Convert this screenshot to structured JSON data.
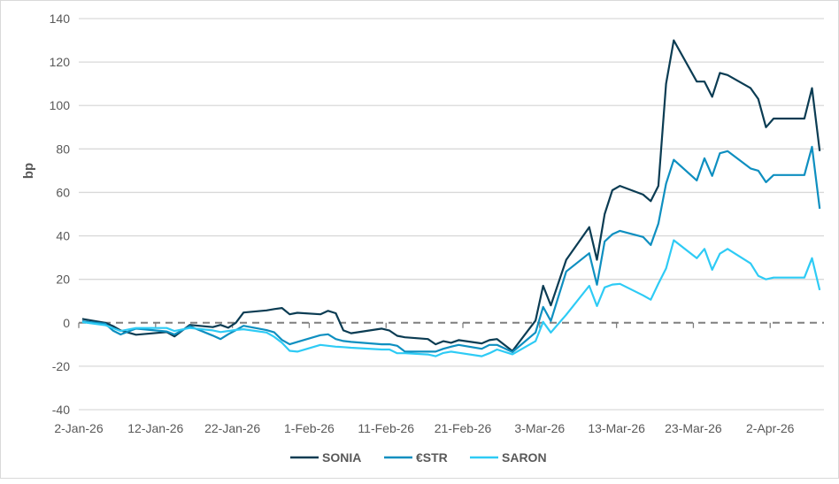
{
  "chart_data": {
    "type": "line",
    "title": "",
    "xlabel": "",
    "ylabel": "bp",
    "ylim": [
      -40,
      140
    ],
    "yticks": [
      -40,
      -20,
      0,
      20,
      40,
      60,
      80,
      100,
      120,
      140
    ],
    "ytick_labels": [
      "-40",
      "-20",
      "0",
      "20",
      "40",
      "60",
      "80",
      "100",
      "120",
      "140"
    ],
    "xlim": [
      "2026-01-02",
      "2026-04-09"
    ],
    "xticks": [
      "2026-01-02",
      "2026-01-12",
      "2026-01-22",
      "2026-02-01",
      "2026-02-11",
      "2026-02-21",
      "2026-03-03",
      "2026-03-13",
      "2026-03-23",
      "2026-04-02"
    ],
    "xtick_labels": [
      "2-Jan-26",
      "12-Jan-26",
      "22-Jan-26",
      "1-Feb-26",
      "11-Feb-26",
      "21-Feb-26",
      "3-Mar-26",
      "13-Mar-26",
      "23-Mar-26",
      "2-Apr-26"
    ],
    "grid": "horizontal",
    "zero_line": "dashed",
    "legend_position": "bottom",
    "x": [
      "2026-01-02",
      "2026-01-05",
      "2026-01-06",
      "2026-01-07",
      "2026-01-09",
      "2026-01-13",
      "2026-01-14",
      "2026-01-16",
      "2026-01-19",
      "2026-01-20",
      "2026-01-21",
      "2026-01-22",
      "2026-01-23",
      "2026-01-26",
      "2026-01-27",
      "2026-01-28",
      "2026-01-29",
      "2026-01-30",
      "2026-02-02",
      "2026-02-03",
      "2026-02-04",
      "2026-02-05",
      "2026-02-06",
      "2026-02-10",
      "2026-02-11",
      "2026-02-12",
      "2026-02-13",
      "2026-02-16",
      "2026-02-17",
      "2026-02-18",
      "2026-02-19",
      "2026-02-20",
      "2026-02-23",
      "2026-02-24",
      "2026-02-25",
      "2026-02-27",
      "2026-03-02",
      "2026-03-03",
      "2026-03-04",
      "2026-03-06",
      "2026-03-09",
      "2026-03-10",
      "2026-03-11",
      "2026-03-12",
      "2026-03-13",
      "2026-03-16",
      "2026-03-17",
      "2026-03-18",
      "2026-03-19",
      "2026-03-20",
      "2026-03-23",
      "2026-03-24",
      "2026-03-25",
      "2026-03-26",
      "2026-03-27",
      "2026-03-30",
      "2026-03-31",
      "2026-04-01",
      "2026-04-02",
      "2026-04-06",
      "2026-04-07",
      "2026-04-08"
    ],
    "series": [
      {
        "name": "SONIA",
        "color": "#0b3c53",
        "values": [
          1.8,
          0,
          -1.5,
          -3.5,
          -5.5,
          -4.3,
          -6.3,
          -1,
          -2,
          -1,
          -2.3,
          0,
          4.7,
          5.7,
          6.3,
          6.8,
          3.9,
          4.6,
          3.9,
          5.5,
          4.4,
          -3.5,
          -4.8,
          -2.7,
          -3.6,
          -6,
          -6.7,
          -7.5,
          -9.9,
          -8.5,
          -9.2,
          -8,
          -9.5,
          -8,
          -7.5,
          -13,
          1,
          17,
          8,
          29,
          44,
          29,
          50,
          61,
          63,
          59,
          56,
          63,
          110,
          130,
          111,
          111,
          104,
          115,
          114,
          108,
          103,
          90,
          94,
          94,
          108,
          79
        ]
      },
      {
        "name": "€STR",
        "color": "#0e8fc0",
        "values": [
          0.7,
          -0.4,
          -3.6,
          -5.4,
          -2.7,
          -4,
          -5.4,
          -1.6,
          -5.9,
          -7.5,
          -5.3,
          -3.4,
          -1.4,
          -3.4,
          -4.4,
          -7.9,
          -9.9,
          -8.8,
          -5.7,
          -5.3,
          -7.5,
          -8.4,
          -8.8,
          -9.9,
          -9.9,
          -10.6,
          -13.3,
          -13.3,
          -13.3,
          -12,
          -11,
          -10.2,
          -12,
          -10.2,
          -10.2,
          -13.5,
          -4.5,
          7.3,
          0.8,
          23.6,
          32,
          17.5,
          37.4,
          40.7,
          42.3,
          39.5,
          35.8,
          45.6,
          64,
          75,
          65.5,
          75.7,
          67.6,
          78,
          79,
          71,
          70,
          64.7,
          68,
          68,
          81,
          52.5
        ]
      },
      {
        "name": "SARON",
        "color": "#2ecbf5",
        "values": [
          0.3,
          -1.1,
          -2.5,
          -3.8,
          -2.4,
          -2.4,
          -3.8,
          -2.4,
          -3.5,
          -4.3,
          -3.8,
          -3.3,
          -3,
          -4.5,
          -6.5,
          -9.2,
          -12.9,
          -13.3,
          -10.2,
          -10.6,
          -11,
          -11.2,
          -11.5,
          -12.3,
          -12.3,
          -14,
          -14,
          -14.6,
          -15.4,
          -13.9,
          -13.3,
          -13.8,
          -15.4,
          -14,
          -12.3,
          -14.5,
          -8.5,
          0.4,
          -4.5,
          3.7,
          17,
          7.7,
          16.3,
          17.6,
          17.9,
          12.6,
          10.6,
          18,
          25,
          38,
          29.7,
          34,
          24.4,
          31.8,
          34,
          27.3,
          21.6,
          20,
          20.8,
          20.8,
          29.7,
          15
        ]
      }
    ],
    "colors": {
      "grid": "#d9d9d9",
      "zero_line": "#7f7f7f",
      "text": "#595959"
    }
  }
}
